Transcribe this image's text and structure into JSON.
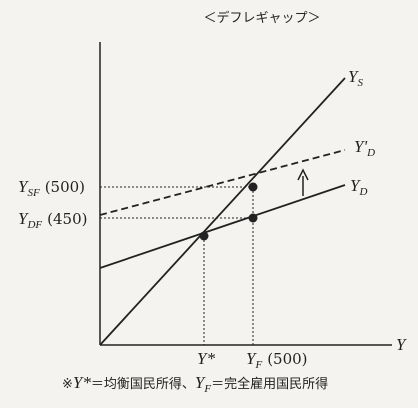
{
  "title": "＜デフレギャップ＞",
  "curves": {
    "supply": {
      "main": "Y",
      "sub": "S"
    },
    "demand_shifted": {
      "main": "Y'",
      "sub": "D"
    },
    "demand": {
      "main": "Y",
      "sub": "D"
    }
  },
  "y_axis_labels": {
    "ysf": {
      "main": "Y",
      "sub": "SF",
      "value": "(500)"
    },
    "ydf": {
      "main": "Y",
      "sub": "DF",
      "value": "(450)"
    }
  },
  "x_axis_labels": {
    "equilibrium": "Y*",
    "full_employment": {
      "main": "Y",
      "sub": "F",
      "value": "(500)"
    },
    "axis": "Y"
  },
  "footnote": {
    "prefix": "※",
    "eq_var": "Y*",
    "eq_text": "＝均衡国民所得、",
    "fe_var": "Y",
    "fe_sub": "F",
    "fe_text": "＝完全雇用国民所得"
  }
}
